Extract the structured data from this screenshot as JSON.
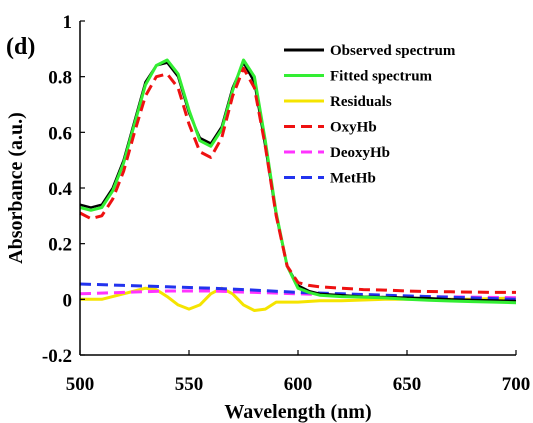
{
  "chart_data": {
    "type": "line",
    "panel_label": "(d)",
    "xlabel": "Wavelength (nm)",
    "ylabel": "Absorbance (a.u.)",
    "xlim": [
      500,
      700
    ],
    "ylim": [
      -0.2,
      1
    ],
    "x_ticks": [
      500,
      550,
      600,
      650,
      700
    ],
    "y_ticks": [
      -0.2,
      0,
      0.2,
      0.4,
      0.6,
      0.8,
      1
    ],
    "x_tick_labels": [
      "500",
      "550",
      "600",
      "650",
      "700"
    ],
    "y_tick_labels": [
      "-0.2",
      "0",
      "0.2",
      "0.4",
      "0.6",
      "0.8",
      "1"
    ],
    "grid": false,
    "legend_position": "top-right",
    "series": [
      {
        "name": "Observed spectrum",
        "color": "#000000",
        "dash": "solid",
        "x": [
          500,
          505,
          510,
          515,
          520,
          525,
          530,
          535,
          540,
          545,
          550,
          555,
          560,
          565,
          570,
          575,
          580,
          585,
          590,
          595,
          600,
          605,
          610,
          620,
          630,
          640,
          650,
          660,
          670,
          680,
          690,
          700
        ],
        "y": [
          0.34,
          0.33,
          0.34,
          0.4,
          0.5,
          0.64,
          0.78,
          0.84,
          0.85,
          0.8,
          0.67,
          0.58,
          0.56,
          0.62,
          0.76,
          0.85,
          0.78,
          0.55,
          0.3,
          0.12,
          0.05,
          0.03,
          0.02,
          0.015,
          0.01,
          0.008,
          0.006,
          0.004,
          0.0,
          -0.002,
          -0.004,
          -0.006
        ]
      },
      {
        "name": "Fitted spectrum",
        "color": "#33ee33",
        "dash": "solid",
        "x": [
          500,
          505,
          510,
          515,
          520,
          525,
          530,
          535,
          540,
          545,
          550,
          555,
          560,
          565,
          570,
          575,
          580,
          585,
          590,
          595,
          600,
          605,
          610,
          620,
          630,
          640,
          650,
          660,
          670,
          680,
          690,
          700
        ],
        "y": [
          0.33,
          0.32,
          0.33,
          0.39,
          0.49,
          0.63,
          0.77,
          0.84,
          0.86,
          0.81,
          0.68,
          0.57,
          0.55,
          0.61,
          0.75,
          0.86,
          0.8,
          0.57,
          0.31,
          0.12,
          0.04,
          0.025,
          0.015,
          0.01,
          0.008,
          0.005,
          0.0,
          -0.003,
          -0.006,
          -0.008,
          -0.01,
          -0.012
        ]
      },
      {
        "name": "Residuals",
        "color": "#f5e400",
        "dash": "solid",
        "x": [
          500,
          505,
          510,
          515,
          520,
          525,
          530,
          535,
          540,
          545,
          550,
          555,
          560,
          565,
          570,
          575,
          580,
          585,
          590,
          595,
          600,
          610,
          620,
          640,
          660,
          680,
          700
        ],
        "y": [
          0.0,
          0.0,
          0.0,
          0.01,
          0.02,
          0.03,
          0.04,
          0.035,
          0.01,
          -0.02,
          -0.035,
          -0.02,
          0.02,
          0.04,
          0.02,
          -0.02,
          -0.04,
          -0.035,
          -0.01,
          -0.01,
          -0.01,
          -0.005,
          -0.005,
          0.0,
          0.0,
          0.0,
          0.005
        ]
      },
      {
        "name": "OxyHb",
        "color": "#ee1111",
        "dash": "dashed",
        "x": [
          500,
          505,
          510,
          515,
          520,
          525,
          530,
          535,
          540,
          545,
          550,
          555,
          560,
          565,
          570,
          575,
          580,
          585,
          590,
          595,
          600,
          605,
          610,
          620,
          630,
          640,
          650,
          660,
          670,
          680,
          690,
          700
        ],
        "y": [
          0.31,
          0.29,
          0.3,
          0.36,
          0.46,
          0.6,
          0.73,
          0.8,
          0.81,
          0.76,
          0.63,
          0.53,
          0.51,
          0.58,
          0.73,
          0.83,
          0.76,
          0.55,
          0.3,
          0.12,
          0.06,
          0.05,
          0.045,
          0.04,
          0.035,
          0.033,
          0.03,
          0.028,
          0.027,
          0.026,
          0.025,
          0.025
        ]
      },
      {
        "name": "DeoxyHb",
        "color": "#ff33ff",
        "dash": "dashed",
        "x": [
          500,
          520,
          540,
          560,
          580,
          600,
          620,
          640,
          660,
          680,
          700
        ],
        "y": [
          0.02,
          0.025,
          0.03,
          0.03,
          0.025,
          0.02,
          0.015,
          0.01,
          0.01,
          0.008,
          0.006
        ]
      },
      {
        "name": "MetHb",
        "color": "#2233ee",
        "dash": "dashed",
        "x": [
          500,
          520,
          540,
          560,
          580,
          600,
          620,
          640,
          660,
          680,
          700
        ],
        "y": [
          0.055,
          0.05,
          0.045,
          0.04,
          0.033,
          0.025,
          0.02,
          0.015,
          0.01,
          0.005,
          0.0
        ]
      }
    ]
  }
}
